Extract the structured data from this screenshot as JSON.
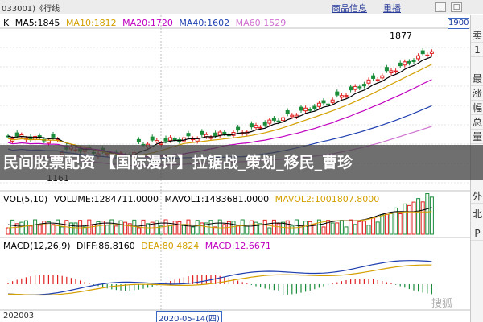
{
  "window": {
    "code_title": "033001)《行线",
    "links": [
      "商品信息",
      "重播"
    ],
    "controls": [
      "_",
      "□"
    ]
  },
  "price_panel": {
    "k_label": "K",
    "ma": [
      {
        "label": "MA5:1845",
        "color": "#000000"
      },
      {
        "label": "MA10:1812",
        "color": "#d4a000"
      },
      {
        "label": "MA20:1720",
        "color": "#c000c0"
      },
      {
        "label": "MA40:1602",
        "color": "#1f3fb0"
      },
      {
        "label": "MA60:1529",
        "color": "#d070d0"
      }
    ],
    "high_label": "1877",
    "low_label": "1161",
    "current_price": "1900"
  },
  "volume_panel": {
    "legend": [
      {
        "label": "VOL(5,10)",
        "color": "#000000"
      },
      {
        "label": "VOLUME:1284711.0000",
        "color": "#000000"
      },
      {
        "label": "MAVOL1:1483681.0000",
        "color": "#000000"
      },
      {
        "label": "MAVOL2:1001807.8000",
        "color": "#d4a000"
      }
    ]
  },
  "macd_panel": {
    "legend": [
      {
        "label": "MACD(12,26,9)",
        "color": "#000000"
      },
      {
        "label": "DIFF:86.8160",
        "color": "#000000"
      },
      {
        "label": "DEA:80.4824",
        "color": "#d4a000"
      },
      {
        "label": "MACD:12.6671",
        "color": "#c000c0"
      }
    ]
  },
  "side_tabs": [
    "卖",
    "1",
    "最",
    "涨",
    "幅",
    "总",
    "量",
    "外",
    "北",
    "P"
  ],
  "date_axis": {
    "start_label": "202003",
    "cursor_date": "2020-05-14(四)"
  },
  "banner_text": "民间股票配资 【国际漫评】拉锯战_策划_移民_曹珍",
  "watermark": "搜狐"
}
